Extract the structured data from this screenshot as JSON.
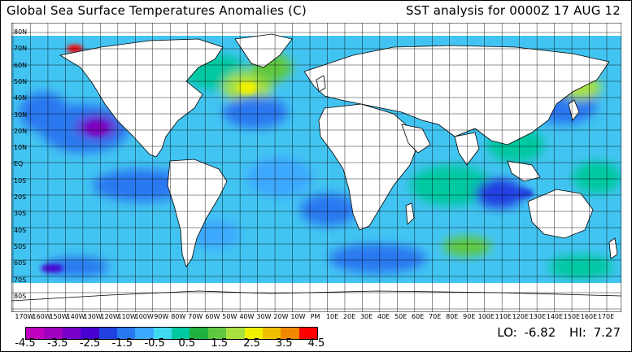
{
  "header": {
    "title": "Global Sea Surface Temperatures Anomalies (C)",
    "analysis": "SST analysis for 0000Z 17 AUG 12"
  },
  "lat_labels": [
    "80N",
    "70N",
    "60N",
    "50N",
    "40N",
    "30N",
    "20N",
    "10N",
    "EQ",
    "10S",
    "20S",
    "30S",
    "40S",
    "50S",
    "60S",
    "70S",
    "80S"
  ],
  "lon_labels": [
    "170W",
    "160W",
    "150W",
    "140W",
    "130W",
    "120W",
    "110W",
    "100W",
    "90W",
    "80W",
    "70W",
    "60W",
    "50W",
    "40W",
    "30W",
    "20W",
    "10W",
    "PM",
    "10E",
    "20E",
    "30E",
    "40E",
    "50E",
    "60E",
    "70E",
    "80E",
    "90E",
    "100E",
    "110E",
    "120E",
    "130E",
    "140E",
    "150E",
    "160E",
    "170E"
  ],
  "scale": {
    "colors": [
      "#c000c0",
      "#a000c0",
      "#7800c8",
      "#4800d0",
      "#2040e0",
      "#2878f0",
      "#3ca8ff",
      "#40d8f0",
      "#00c8a0",
      "#20b040",
      "#60c840",
      "#a8e040",
      "#f0f000",
      "#f0c000",
      "#f08800",
      "#ff0000"
    ],
    "labels": [
      "-4.5",
      "-3.5",
      "-2.5",
      "-1.5",
      "-0.5",
      "0.5",
      "1.5",
      "2.5",
      "3.5",
      "4.5"
    ]
  },
  "stats": {
    "lo_label": "LO:",
    "lo": "-6.82",
    "hi_label": "HI:",
    "hi": "7.27"
  },
  "map_colors": {
    "land": "#ffffff",
    "ocean_base": "#40c0f0",
    "ice": "#ffffff",
    "grid": "#000000"
  }
}
